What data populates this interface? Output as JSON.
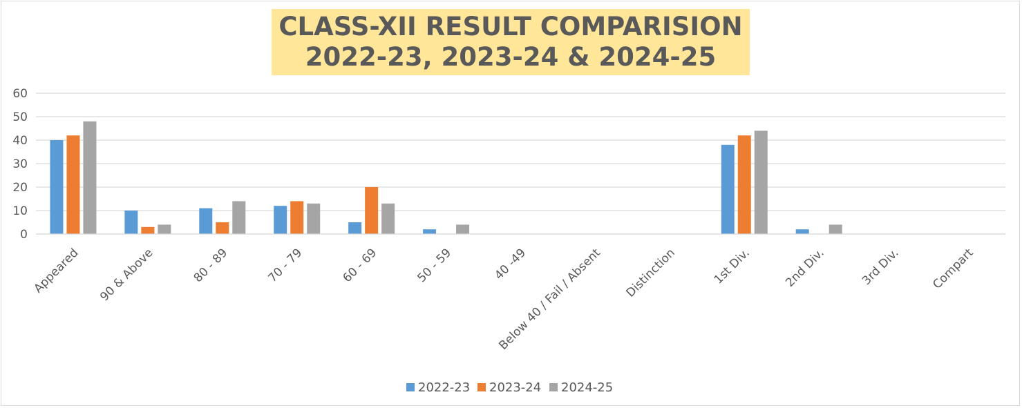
{
  "chart_data": {
    "type": "bar",
    "title_lines": [
      "CLASS-XII RESULT COMPARISION",
      "2022-23, 2023-24 & 2024-25"
    ],
    "categories": [
      "Appeared",
      "90 & Above",
      "80 - 89",
      "70 - 79",
      "60 - 69",
      "50 - 59",
      "40 -49",
      "Below 40 / Fail / Absent",
      "Distinction",
      "1st Div.",
      "2nd Div.",
      "3rd Div.",
      "Compart"
    ],
    "series": [
      {
        "name": "2022-23",
        "color": "#5b9bd5",
        "values": [
          40,
          10,
          11,
          12,
          5,
          2,
          0,
          0,
          0,
          38,
          2,
          0,
          0
        ]
      },
      {
        "name": "2023-24",
        "color": "#ed7d31",
        "values": [
          42,
          3,
          5,
          14,
          20,
          0,
          0,
          0,
          0,
          42,
          0,
          0,
          0
        ]
      },
      {
        "name": "2024-25",
        "color": "#a5a5a5",
        "values": [
          48,
          4,
          14,
          13,
          13,
          4,
          0,
          0,
          0,
          44,
          4,
          0,
          0
        ]
      }
    ],
    "ylim": [
      0,
      60
    ],
    "yticks": [
      0,
      10,
      20,
      30,
      40,
      50,
      60
    ],
    "grid": true,
    "legend": "bottom-center"
  }
}
